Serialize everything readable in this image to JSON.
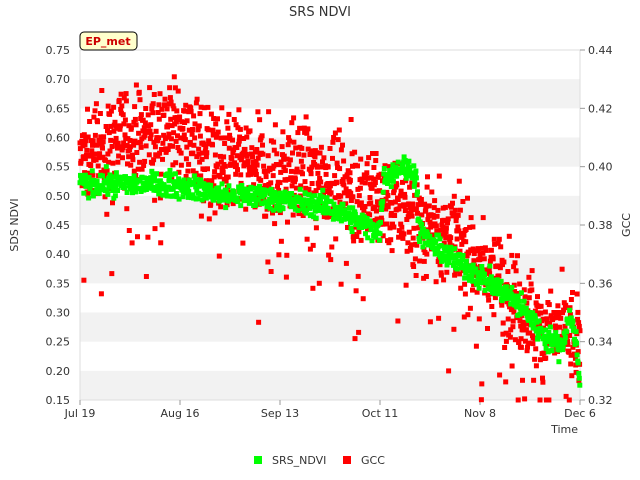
{
  "chart_data": {
    "type": "scatter",
    "title": "SRS NDVI",
    "badge": "EP_met",
    "xlabel": "Time",
    "ylabel_left": "SDS NDVI",
    "ylabel_right": "GCC",
    "x_ticks": [
      "Jul 19",
      "Aug 16",
      "Sep 13",
      "Oct 11",
      "Nov 8",
      "Dec 6"
    ],
    "x_range_days": [
      0,
      140
    ],
    "ylim_left": [
      0.15,
      0.75
    ],
    "ylim_right": [
      0.32,
      0.44
    ],
    "y_ticks_left": [
      "0.15",
      "0.20",
      "0.25",
      "0.30",
      "0.35",
      "0.40",
      "0.45",
      "0.50",
      "0.55",
      "0.60",
      "0.65",
      "0.70",
      "0.75"
    ],
    "y_ticks_right": [
      "0.32",
      "0.34",
      "0.36",
      "0.38",
      "0.40",
      "0.42",
      "0.44"
    ],
    "series": [
      {
        "name": "SRS_NDVI",
        "color": "#00ff00",
        "axis": "left",
        "trend_day": [
          0,
          10,
          20,
          25,
          30,
          35,
          40,
          50,
          55,
          60,
          70,
          80,
          84,
          85,
          90,
          94,
          95,
          100,
          110,
          120,
          125,
          130,
          135,
          137,
          139,
          140
        ],
        "trend_value": [
          0.52,
          0.52,
          0.52,
          0.52,
          0.515,
          0.51,
          0.5,
          0.5,
          0.495,
          0.49,
          0.48,
          0.45,
          0.44,
          0.53,
          0.55,
          0.54,
          0.44,
          0.41,
          0.37,
          0.33,
          0.3,
          0.26,
          0.24,
          0.3,
          0.25,
          0.16
        ],
        "spread": 0.01
      },
      {
        "name": "GCC",
        "color": "#ff0000",
        "axis": "right",
        "trend_day": [
          0,
          5,
          10,
          15,
          20,
          25,
          28,
          30,
          40,
          50,
          60,
          70,
          80,
          90,
          100,
          110,
          120,
          125,
          130,
          135,
          140
        ],
        "trend_value": [
          0.4,
          0.407,
          0.41,
          0.411,
          0.412,
          0.413,
          0.415,
          0.411,
          0.402,
          0.399,
          0.398,
          0.396,
          0.392,
          0.386,
          0.38,
          0.37,
          0.357,
          0.35,
          0.345,
          0.343,
          0.34
        ],
        "spread": 0.008,
        "outlier_spread": 0.02
      }
    ],
    "legend": [
      "SRS_NDVI",
      "GCC"
    ]
  }
}
